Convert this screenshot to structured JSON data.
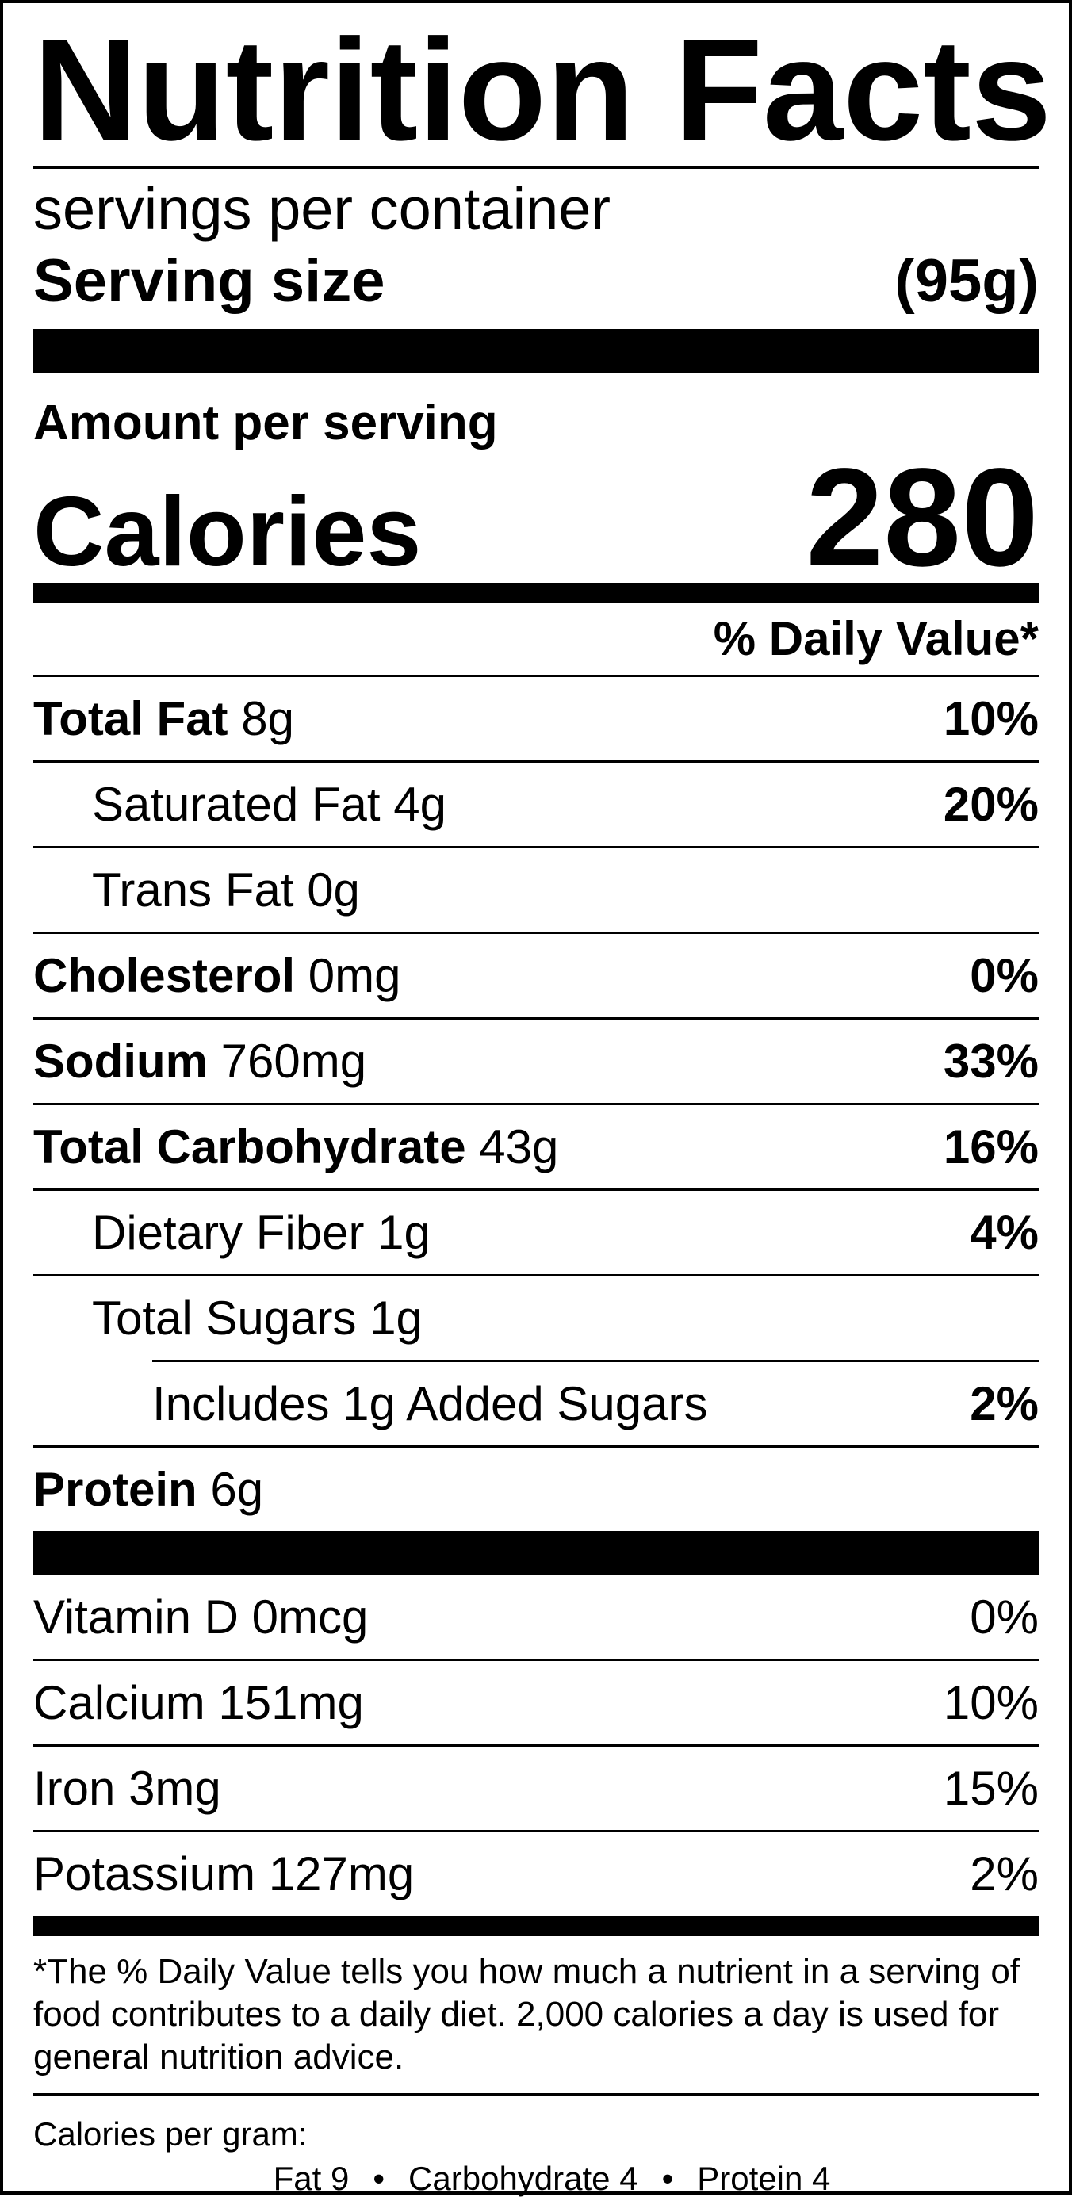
{
  "label": {
    "title": "Nutrition Facts",
    "servings_text": "servings per container",
    "serving_size_label": "Serving size",
    "serving_size_value": "(95g)",
    "amount_per_serving": "Amount per serving",
    "calories_label": "Calories",
    "calories_value": "280",
    "daily_value_header": "% Daily Value*",
    "nutrients": [
      {
        "name": "Total Fat",
        "amount": "8g",
        "dv": "10%"
      },
      {
        "name": "Saturated Fat",
        "amount": "4g",
        "dv": "20%"
      },
      {
        "name": "Trans Fat",
        "amount": "0g",
        "dv": ""
      },
      {
        "name": "Cholesterol",
        "amount": "0mg",
        "dv": "0%"
      },
      {
        "name": "Sodium",
        "amount": "760mg",
        "dv": "33%"
      },
      {
        "name": "Total Carbohydrate",
        "amount": "43g",
        "dv": "16%"
      },
      {
        "name": "Dietary Fiber",
        "amount": "1g",
        "dv": "4%"
      },
      {
        "name": "Total Sugars",
        "amount": "1g",
        "dv": ""
      },
      {
        "name": "Includes 1g Added Sugars",
        "amount": "",
        "dv": "2%"
      },
      {
        "name": "Protein",
        "amount": "6g",
        "dv": ""
      }
    ],
    "vitamins": [
      {
        "name": "Vitamin D",
        "amount": "0mcg",
        "dv": "0%"
      },
      {
        "name": "Calcium",
        "amount": "151mg",
        "dv": "10%"
      },
      {
        "name": "Iron",
        "amount": "3mg",
        "dv": "15%"
      },
      {
        "name": "Potassium",
        "amount": "127mg",
        "dv": "2%"
      }
    ],
    "footnote": "*The % Daily Value tells you how much a nutrient in a serving of food contributes to a daily diet. 2,000 calories a day is used for general nutrition advice.",
    "calories_per_gram_label": "Calories per gram:",
    "calories_per_gram": {
      "fat": "Fat 9",
      "carbohydrate": "Carbohydrate 4",
      "protein": "Protein 4",
      "separator": "•"
    }
  }
}
